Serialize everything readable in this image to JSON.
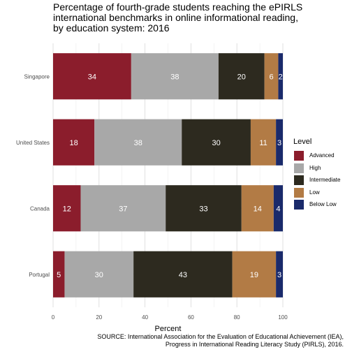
{
  "chart_data": {
    "type": "bar",
    "orientation": "horizontal",
    "stacked": true,
    "title_lines": [
      "Percentage of fourth-grade students reaching the ePIRLS",
      "international benchmarks in online informational reading,",
      "by education system: 2016"
    ],
    "xlabel": "Percent",
    "ylabel": "",
    "xlim": [
      0,
      100
    ],
    "x_ticks": [
      "0",
      "20",
      "40",
      "60",
      "80",
      "100"
    ],
    "grid": true,
    "legend_position": "right",
    "legend_title": "Level",
    "categories": [
      "Singapore",
      "United States",
      "Canada",
      "Portugal"
    ],
    "series": [
      {
        "name": "Advanced",
        "color": "#8b1d2c",
        "values": [
          34,
          18,
          12,
          5
        ],
        "labels": [
          "34",
          "18",
          "12",
          "5"
        ]
      },
      {
        "name": "High",
        "color": "#a8a8a8",
        "values": [
          38,
          38,
          37,
          30
        ],
        "labels": [
          "38",
          "38",
          "37",
          "30"
        ]
      },
      {
        "name": "Intermediate",
        "color": "#2d2a1f",
        "values": [
          20,
          30,
          33,
          43
        ],
        "labels": [
          "20",
          "30",
          "33",
          "43"
        ]
      },
      {
        "name": "Low",
        "color": "#b27b45",
        "values": [
          6,
          11,
          14,
          19
        ],
        "labels": [
          "6",
          "11",
          "14",
          "19"
        ]
      },
      {
        "name": "Below Low",
        "color": "#1a2a6b",
        "values": [
          2,
          3,
          4,
          3
        ],
        "labels": [
          "2",
          "3",
          "4",
          "3"
        ]
      }
    ],
    "source_lines": [
      "SOURCE: International Association for the Evaluation of Educational Achievement (IEA),",
      "Progress in International Reading Literacy Study (PIRLS), 2016."
    ]
  }
}
